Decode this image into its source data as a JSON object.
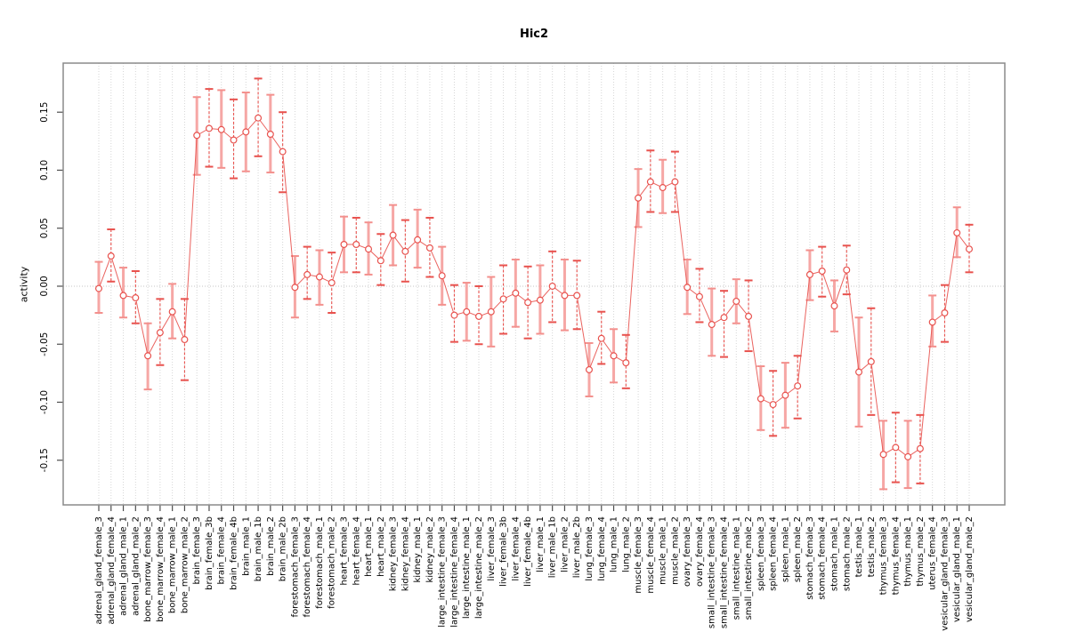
{
  "chart_data": {
    "type": "scatter",
    "title": "Hic2",
    "ylabel": "activity",
    "xlabel": "",
    "marker": "open-circle",
    "connected": true,
    "error_bars": true,
    "grid": "vertical-dotted-per-category",
    "zero_reference_line": true,
    "legend": "none",
    "ylim": [
      -0.1885,
      0.1923
    ],
    "yticks": [
      {
        "v": -0.15,
        "label": "-0.15"
      },
      {
        "v": -0.1,
        "label": "-0.10"
      },
      {
        "v": -0.05,
        "label": "-0.05"
      },
      {
        "v": 0.0,
        "label": "0.00"
      },
      {
        "v": 0.05,
        "label": "0.05"
      },
      {
        "v": 0.1,
        "label": "0.10"
      },
      {
        "v": 0.15,
        "label": "0.15"
      }
    ],
    "categories": [
      "adrenal_gland_female_3",
      "adrenal_gland_female_4",
      "adrenal_gland_male_1",
      "adrenal_gland_male_2",
      "bone_marrow_female_3",
      "bone_marrow_female_4",
      "bone_marrow_male_1",
      "bone_marrow_male_2",
      "brain_female_3",
      "brain_female_3b",
      "brain_female_4",
      "brain_female_4b",
      "brain_male_1",
      "brain_male_1b",
      "brain_male_2",
      "brain_male_2b",
      "forestomach_female_3",
      "forestomach_female_4",
      "forestomach_male_1",
      "forestomach_male_2",
      "heart_female_3",
      "heart_female_4",
      "heart_male_1",
      "heart_male_2",
      "kidney_female_3",
      "kidney_female_4",
      "kidney_male_1",
      "kidney_male_2",
      "large_intestine_female_3",
      "large_intestine_female_4",
      "large_intestine_male_1",
      "large_intestine_male_2",
      "liver_female_3",
      "liver_female_3b",
      "liver_female_4",
      "liver_female_4b",
      "liver_male_1",
      "liver_male_1b",
      "liver_male_2",
      "liver_male_2b",
      "lung_female_3",
      "lung_female_4",
      "lung_male_1",
      "lung_male_2",
      "muscle_female_3",
      "muscle_female_4",
      "muscle_male_1",
      "muscle_male_2",
      "ovary_female_3",
      "ovary_female_4",
      "small_intestine_female_3",
      "small_intestine_female_4",
      "small_intestine_male_1",
      "small_intestine_male_2",
      "spleen_female_3",
      "spleen_female_4",
      "spleen_male_1",
      "spleen_male_2",
      "stomach_female_3",
      "stomach_female_4",
      "stomach_male_1",
      "stomach_male_2",
      "testis_male_1",
      "testis_male_2",
      "thymus_female_3",
      "thymus_female_4",
      "thymus_male_1",
      "thymus_male_2",
      "uterus_female_4",
      "vesicular_gland_female_3",
      "vesicular_gland_male_1",
      "vesicular_gland_male_2"
    ],
    "series": [
      {
        "name": "activity",
        "values": [
          -0.002,
          0.026,
          -0.008,
          -0.01,
          -0.06,
          -0.04,
          -0.022,
          -0.046,
          0.13,
          0.136,
          0.135,
          0.126,
          0.133,
          0.145,
          0.131,
          0.116,
          -0.001,
          0.01,
          0.008,
          0.003,
          0.036,
          0.036,
          0.032,
          0.022,
          0.044,
          0.03,
          0.04,
          0.033,
          0.009,
          -0.025,
          -0.022,
          -0.026,
          -0.022,
          -0.011,
          -0.006,
          -0.014,
          -0.012,
          0.0,
          -0.008,
          -0.008,
          -0.072,
          -0.045,
          -0.06,
          -0.066,
          0.076,
          0.09,
          0.085,
          0.09,
          -0.001,
          -0.009,
          -0.033,
          -0.027,
          -0.013,
          -0.026,
          -0.097,
          -0.102,
          -0.094,
          -0.086,
          0.01,
          0.013,
          -0.017,
          0.014,
          -0.074,
          -0.065,
          -0.145,
          -0.139,
          -0.147,
          -0.14,
          -0.031,
          -0.023,
          0.046,
          0.032
        ],
        "hi": [
          0.021,
          0.049,
          0.016,
          0.013,
          -0.032,
          -0.011,
          0.002,
          -0.011,
          0.163,
          0.17,
          0.169,
          0.161,
          0.167,
          0.179,
          0.165,
          0.15,
          0.026,
          0.034,
          0.031,
          0.029,
          0.06,
          0.059,
          0.055,
          0.045,
          0.07,
          0.057,
          0.066,
          0.059,
          0.034,
          0.001,
          0.003,
          0.0,
          0.008,
          0.018,
          0.023,
          0.017,
          0.018,
          0.03,
          0.023,
          0.022,
          -0.049,
          -0.022,
          -0.037,
          -0.042,
          0.101,
          0.117,
          0.109,
          0.116,
          0.023,
          0.015,
          -0.002,
          -0.004,
          0.006,
          0.005,
          -0.069,
          -0.073,
          -0.066,
          -0.06,
          0.031,
          0.034,
          0.005,
          0.035,
          -0.027,
          -0.019,
          -0.116,
          -0.109,
          -0.116,
          -0.111,
          -0.008,
          0.001,
          0.068,
          0.053
        ],
        "lo": [
          -0.023,
          0.004,
          -0.027,
          -0.032,
          -0.089,
          -0.068,
          -0.045,
          -0.081,
          0.096,
          0.103,
          0.102,
          0.093,
          0.099,
          0.112,
          0.098,
          0.081,
          -0.027,
          -0.011,
          -0.016,
          -0.023,
          0.012,
          0.012,
          0.01,
          0.001,
          0.018,
          0.004,
          0.016,
          0.008,
          -0.016,
          -0.048,
          -0.047,
          -0.05,
          -0.052,
          -0.041,
          -0.035,
          -0.045,
          -0.041,
          -0.031,
          -0.038,
          -0.037,
          -0.095,
          -0.067,
          -0.083,
          -0.088,
          0.051,
          0.064,
          0.063,
          0.064,
          -0.024,
          -0.031,
          -0.06,
          -0.061,
          -0.032,
          -0.056,
          -0.124,
          -0.129,
          -0.122,
          -0.114,
          -0.012,
          -0.009,
          -0.039,
          -0.007,
          -0.121,
          -0.111,
          -0.175,
          -0.169,
          -0.174,
          -0.17,
          -0.052,
          -0.048,
          0.025,
          0.012
        ]
      }
    ],
    "colors": {
      "point": "#e8524e",
      "line": "#e8524e",
      "errorbar_solid": "#f6a7a5",
      "errorbar_cap_solid": "#f3908d",
      "errorbar_dashed": "#e8524e",
      "grid": "#d6d6d6",
      "zero_line": "#c4c4c4",
      "box": "#8a8a8a",
      "tick": "#4d4d4d",
      "text": "#000000"
    }
  }
}
